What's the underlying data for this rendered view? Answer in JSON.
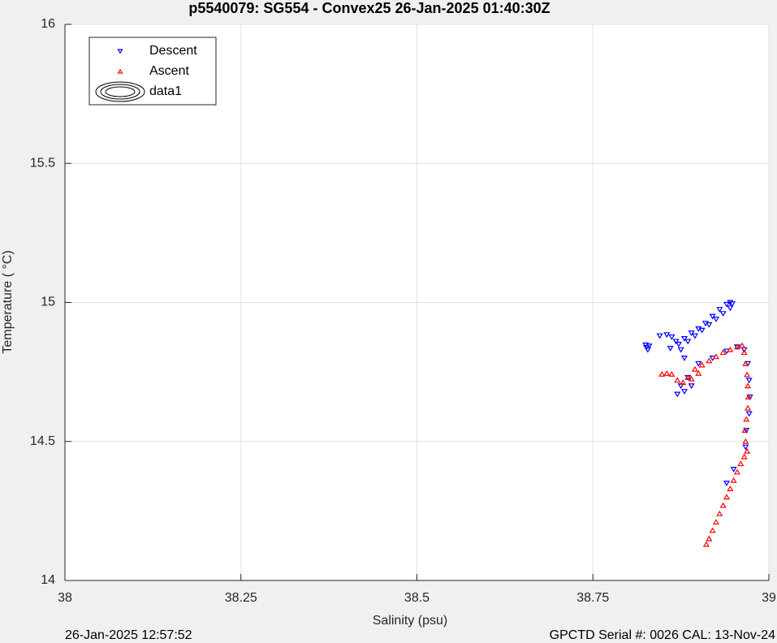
{
  "chart_data": {
    "type": "scatter",
    "title": "p5540079: SG554 - Convex25 26-Jan-2025 01:40:30Z",
    "x_label": "Salinity (psu)",
    "y_label": "Temperature (   °C)",
    "footer_left": "26-Jan-2025 12:57:52",
    "footer_right": "GPCTD Serial #: 0026 CAL: 13-Nov-24",
    "xlim": [
      38,
      39
    ],
    "xticks": [
      38,
      38.25,
      38.5,
      38.75,
      39
    ],
    "ylim": [
      14,
      16
    ],
    "yticks": [
      14,
      14.5,
      15,
      15.5,
      16
    ],
    "grid": true,
    "legend": "upper-left",
    "series": [
      {
        "name": "Descent",
        "color": "#0000ff",
        "marker": "triangle-down",
        "x": [
          38.825,
          38.826,
          38.828,
          38.83,
          38.845,
          38.855,
          38.862,
          38.868,
          38.86,
          38.872,
          38.88,
          38.89,
          38.9,
          38.91,
          38.92,
          38.93,
          38.94,
          38.945,
          38.948,
          38.945,
          38.935,
          38.925,
          38.915,
          38.905,
          38.895,
          38.885,
          38.875,
          38.88,
          38.9,
          38.92,
          38.94,
          38.955,
          38.965,
          38.97,
          38.972,
          38.973,
          38.972,
          38.968,
          38.967,
          38.95,
          38.94,
          38.89,
          38.88,
          38.87,
          38.885,
          38.875
        ],
        "values": [
          14.847,
          14.838,
          14.83,
          14.843,
          14.88,
          14.884,
          14.876,
          14.86,
          14.835,
          14.85,
          14.87,
          14.89,
          14.905,
          14.925,
          14.95,
          14.975,
          14.993,
          15.0,
          14.995,
          14.98,
          14.96,
          14.94,
          14.92,
          14.9,
          14.88,
          14.86,
          14.83,
          14.8,
          14.78,
          14.8,
          14.825,
          14.84,
          14.83,
          14.78,
          14.72,
          14.66,
          14.6,
          14.54,
          14.48,
          14.4,
          14.35,
          14.7,
          14.68,
          14.67,
          14.73,
          14.7
        ]
      },
      {
        "name": "Ascent",
        "color": "#ff0000",
        "marker": "triangle-up",
        "x": [
          38.911,
          38.915,
          38.92,
          38.925,
          38.93,
          38.935,
          38.94,
          38.945,
          38.95,
          38.955,
          38.96,
          38.965,
          38.969,
          38.967,
          38.966,
          38.968,
          38.97,
          38.971,
          38.97,
          38.969,
          38.967,
          38.965,
          38.962,
          38.955,
          38.945,
          38.935,
          38.925,
          38.915,
          38.905,
          38.895,
          38.885,
          38.878,
          38.87,
          38.862,
          38.855,
          38.848,
          38.9,
          38.89
        ],
        "values": [
          14.13,
          14.15,
          14.18,
          14.21,
          14.24,
          14.27,
          14.3,
          14.33,
          14.36,
          14.39,
          14.42,
          14.445,
          14.465,
          14.5,
          14.54,
          14.58,
          14.62,
          14.66,
          14.7,
          14.74,
          14.78,
          14.82,
          14.845,
          14.84,
          14.83,
          14.82,
          14.805,
          14.79,
          14.775,
          14.76,
          14.73,
          14.712,
          14.72,
          14.742,
          14.745,
          14.742,
          14.745,
          14.725
        ]
      },
      {
        "name": "data1",
        "color": "#000000",
        "marker": "contour",
        "x": [],
        "values": []
      }
    ]
  }
}
